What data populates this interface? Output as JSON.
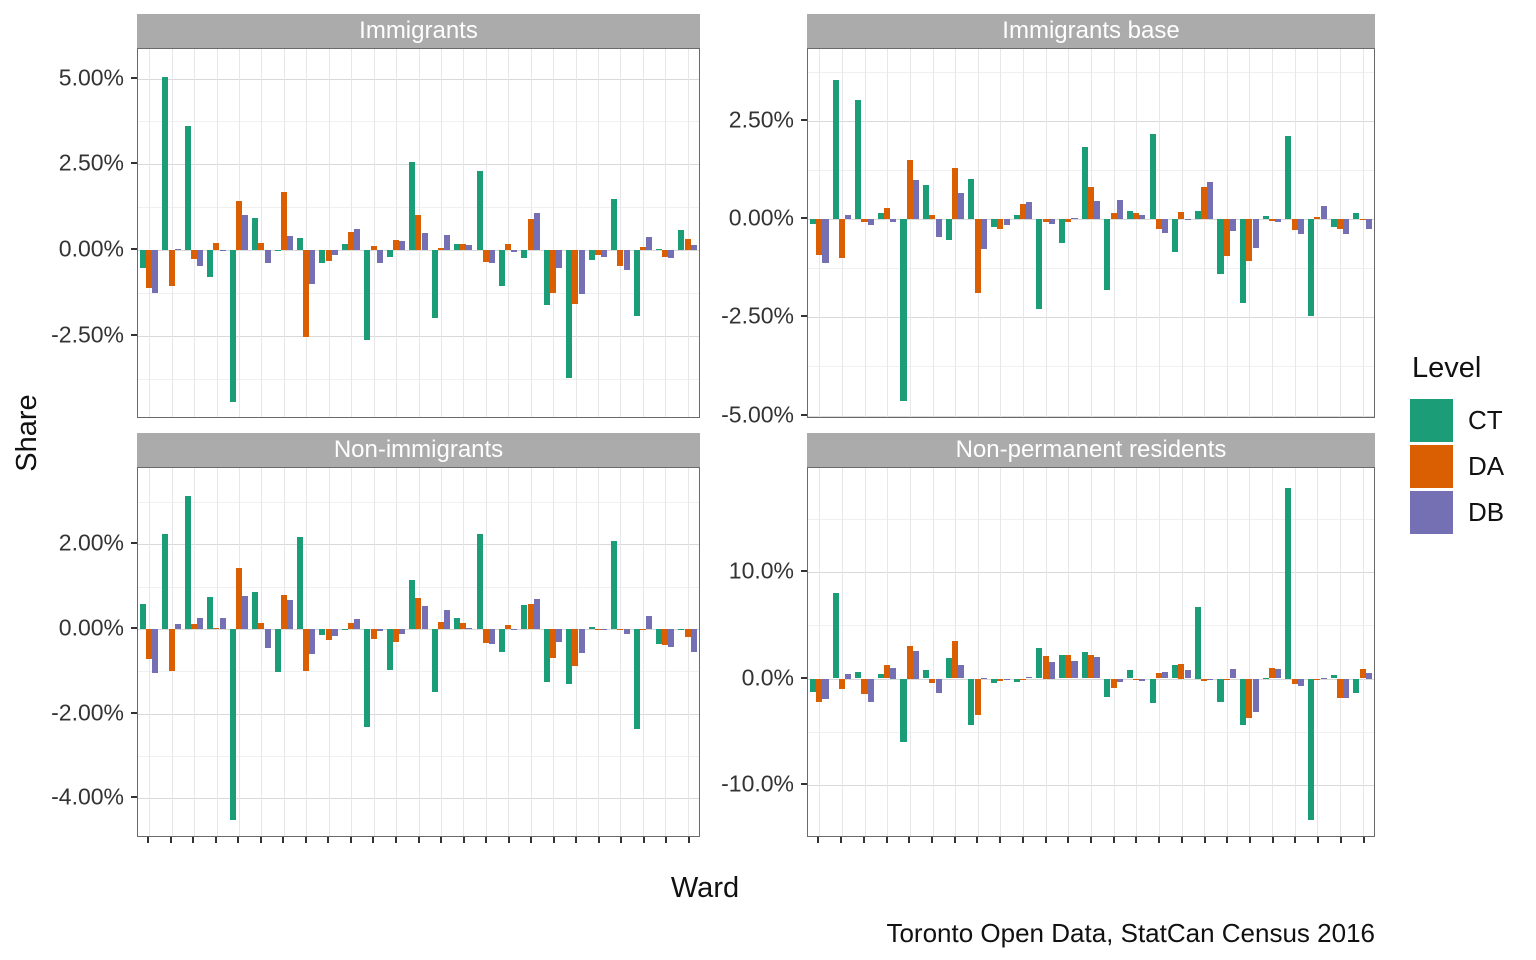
{
  "figure": {
    "y_axis_title": "Share",
    "x_axis_title": "Ward",
    "caption": "Toronto Open Data, StatCan Census 2016",
    "legend": {
      "title": "Level",
      "position": "right",
      "items": [
        {
          "label": "CT",
          "color": "#1b9e77"
        },
        {
          "label": "DA",
          "color": "#d95f02"
        },
        {
          "label": "DB",
          "color": "#7570b3"
        }
      ]
    }
  },
  "chart_data": [
    {
      "type": "bar",
      "title": "Immigrants",
      "xlabel": "Ward",
      "ylabel": "Share",
      "wards": [
        1,
        2,
        3,
        4,
        5,
        6,
        7,
        8,
        9,
        10,
        11,
        12,
        13,
        14,
        15,
        16,
        17,
        18,
        19,
        20,
        21,
        22,
        23,
        24,
        25
      ],
      "x_ticks_labeled": false,
      "ylim": [
        -4.93,
        5.86
      ],
      "minor_step": 1.25,
      "yticks": [
        {
          "value": 5.0,
          "label": "5.00%"
        },
        {
          "value": 2.5,
          "label": "2.50%"
        },
        {
          "value": 0.0,
          "label": "0.00%"
        },
        {
          "value": -2.5,
          "label": "-2.50%"
        }
      ],
      "series": [
        {
          "name": "CT",
          "values": [
            -0.52,
            5.05,
            3.63,
            -0.78,
            -4.44,
            0.92,
            -0.03,
            0.36,
            -0.37,
            0.18,
            -2.64,
            -0.2,
            2.58,
            -2.0,
            0.17,
            2.3,
            -1.05,
            -0.25,
            -1.61,
            -3.74,
            -0.3,
            1.48,
            -1.92,
            0.03,
            0.58
          ]
        },
        {
          "name": "DA",
          "values": [
            -1.11,
            -1.05,
            -0.26,
            0.19,
            1.44,
            0.2,
            1.7,
            -2.54,
            -0.32,
            0.53,
            0.11,
            0.3,
            1.01,
            0.07,
            0.18,
            -0.35,
            0.18,
            0.91,
            -1.26,
            -1.57,
            -0.15,
            -0.48,
            0.08,
            -0.2,
            0.32
          ]
        },
        {
          "name": "DB",
          "values": [
            -1.25,
            0.04,
            -0.46,
            -0.04,
            1.02,
            -0.38,
            0.42,
            -1.0,
            -0.15,
            0.62,
            -0.37,
            0.26,
            0.51,
            0.44,
            0.15,
            -0.39,
            -0.06,
            1.09,
            -0.53,
            -1.28,
            -0.21,
            -0.59,
            0.37,
            -0.25,
            0.15
          ]
        }
      ]
    },
    {
      "type": "bar",
      "title": "Immigrants base",
      "xlabel": "Ward",
      "ylabel": "Share",
      "wards": [
        1,
        2,
        3,
        4,
        5,
        6,
        7,
        8,
        9,
        10,
        11,
        12,
        13,
        14,
        15,
        16,
        17,
        18,
        19,
        20,
        21,
        22,
        23,
        24,
        25
      ],
      "x_ticks_labeled": false,
      "ylim": [
        -5.09,
        4.34
      ],
      "minor_step": 1.25,
      "yticks": [
        {
          "value": 2.5,
          "label": "2.50%"
        },
        {
          "value": 0.0,
          "label": "0.00%"
        },
        {
          "value": -2.5,
          "label": "-2.50%"
        },
        {
          "value": -5.0,
          "label": "-5.00%"
        }
      ],
      "series": [
        {
          "name": "CT",
          "values": [
            -0.12,
            3.55,
            3.05,
            0.17,
            -4.63,
            0.87,
            -0.53,
            1.04,
            -0.19,
            0.1,
            -2.3,
            -0.61,
            1.84,
            -1.8,
            0.2,
            2.17,
            -0.83,
            0.2,
            -1.39,
            -2.14,
            0.09,
            2.12,
            -2.47,
            -0.19,
            0.17
          ]
        },
        {
          "name": "DA",
          "values": [
            -0.91,
            -0.98,
            -0.08,
            0.29,
            1.51,
            0.12,
            1.32,
            -1.88,
            -0.25,
            0.4,
            -0.08,
            -0.06,
            0.83,
            0.17,
            0.17,
            -0.26,
            0.19,
            0.83,
            -0.93,
            -1.07,
            -0.05,
            -0.28,
            0.05,
            -0.24,
            0.02
          ]
        },
        {
          "name": "DB",
          "values": [
            -1.12,
            0.11,
            -0.15,
            -0.06,
            1.0,
            -0.45,
            0.67,
            -0.77,
            -0.15,
            0.45,
            -0.13,
            0.03,
            0.46,
            0.49,
            0.1,
            -0.34,
            -0.02,
            0.96,
            -0.31,
            -0.74,
            -0.06,
            -0.37,
            0.34,
            -0.37,
            -0.25
          ]
        }
      ]
    },
    {
      "type": "bar",
      "title": "Non-immigrants",
      "xlabel": "Ward",
      "ylabel": "Share",
      "wards": [
        1,
        2,
        3,
        4,
        5,
        6,
        7,
        8,
        9,
        10,
        11,
        12,
        13,
        14,
        15,
        16,
        17,
        18,
        19,
        20,
        21,
        22,
        23,
        24,
        25
      ],
      "x_ticks_labeled": false,
      "ylim": [
        -4.94,
        3.8
      ],
      "minor_step": 1.0,
      "yticks": [
        {
          "value": 2.0,
          "label": "2.00%"
        },
        {
          "value": 0.0,
          "label": "0.00%"
        },
        {
          "value": -2.0,
          "label": "-2.00%"
        },
        {
          "value": -4.0,
          "label": "-4.00%"
        }
      ],
      "series": [
        {
          "name": "CT",
          "values": [
            0.59,
            2.25,
            3.14,
            0.76,
            -4.52,
            0.87,
            -1.03,
            2.18,
            -0.14,
            -0.03,
            -2.33,
            -0.97,
            1.16,
            -1.5,
            0.25,
            2.25,
            -0.55,
            0.57,
            -1.25,
            -1.31,
            0.04,
            2.07,
            -2.36,
            -0.36,
            -0.02
          ]
        },
        {
          "name": "DA",
          "values": [
            -0.71,
            -0.99,
            0.12,
            0.03,
            1.44,
            0.13,
            0.81,
            -0.99,
            -0.26,
            0.13,
            -0.25,
            -0.31,
            0.74,
            0.17,
            0.15,
            -0.34,
            0.09,
            0.6,
            -0.7,
            -0.88,
            -0.03,
            -0.03,
            0.0,
            -0.39,
            -0.19
          ]
        },
        {
          "name": "DB",
          "values": [
            -1.04,
            0.11,
            0.25,
            0.25,
            0.77,
            -0.46,
            0.69,
            -0.59,
            -0.16,
            0.24,
            -0.05,
            -0.13,
            0.55,
            0.45,
            0.03,
            -0.36,
            -0.02,
            0.71,
            -0.3,
            -0.58,
            -0.02,
            -0.13,
            0.31,
            -0.43,
            -0.54
          ]
        }
      ]
    },
    {
      "type": "bar",
      "title": "Non-permanent residents",
      "xlabel": "Ward",
      "ylabel": "Share",
      "wards": [
        1,
        2,
        3,
        4,
        5,
        6,
        7,
        8,
        9,
        10,
        11,
        12,
        13,
        14,
        15,
        16,
        17,
        18,
        19,
        20,
        21,
        22,
        23,
        24,
        25
      ],
      "x_ticks_labeled": false,
      "ylim": [
        -15.0,
        19.8
      ],
      "minor_step": 5.0,
      "yticks": [
        {
          "value": 10.0,
          "label": "10.0%"
        },
        {
          "value": 0.0,
          "label": "0.0%"
        },
        {
          "value": -10.0,
          "label": "-10.0%"
        }
      ],
      "series": [
        {
          "name": "CT",
          "values": [
            -1.26,
            8.03,
            0.65,
            0.39,
            -6.0,
            0.77,
            1.94,
            -4.35,
            -0.42,
            -0.29,
            2.9,
            2.23,
            2.52,
            -1.71,
            0.77,
            -2.29,
            1.29,
            6.74,
            -2.19,
            -4.35,
            0.06,
            17.97,
            -13.3,
            0.35,
            -1.32
          ]
        },
        {
          "name": "DA",
          "values": [
            -2.16,
            -0.97,
            -1.5,
            1.29,
            3.06,
            -0.42,
            3.52,
            -3.42,
            -0.26,
            -0.06,
            2.16,
            2.19,
            2.19,
            -0.87,
            -0.13,
            0.55,
            1.35,
            -0.23,
            -0.03,
            -3.71,
            0.97,
            -0.52,
            -0.1,
            -1.84,
            0.9
          ]
        },
        {
          "name": "DB",
          "values": [
            -1.9,
            0.42,
            -2.25,
            1.03,
            2.61,
            -1.32,
            1.29,
            0.1,
            -0.06,
            0.13,
            1.55,
            1.61,
            2.03,
            -0.33,
            -0.19,
            0.65,
            0.84,
            -0.05,
            0.9,
            -3.13,
            0.9,
            -0.68,
            0.1,
            -1.84,
            0.52
          ]
        }
      ]
    }
  ]
}
